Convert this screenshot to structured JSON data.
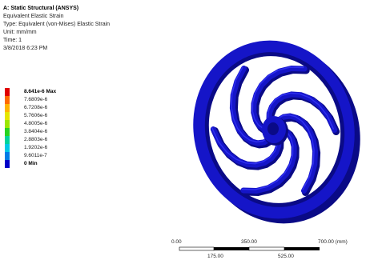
{
  "info": {
    "title": "A: Static Structural (ANSYS)",
    "result": "Equivalent Elastic Strain",
    "type": "Type: Equivalent (von-Mises) Elastic Strain",
    "unit": "Unit: mm/mm",
    "time": "Time: 1",
    "date": "3/8/2018 6:23 PM"
  },
  "legend": [
    {
      "label": "8.641e-6 Max",
      "color": "#e00000",
      "emphasis": true
    },
    {
      "label": "7.6809e-6",
      "color": "#ff6a00",
      "emphasis": false
    },
    {
      "label": "6.7208e-6",
      "color": "#ffb400",
      "emphasis": false
    },
    {
      "label": "5.7606e-6",
      "color": "#e6e600",
      "emphasis": false
    },
    {
      "label": "4.8005e-6",
      "color": "#9be600",
      "emphasis": false
    },
    {
      "label": "3.8404e-6",
      "color": "#27d31f",
      "emphasis": false
    },
    {
      "label": "2.8803e-6",
      "color": "#00d39b",
      "emphasis": false
    },
    {
      "label": "1.9202e-6",
      "color": "#00c8e6",
      "emphasis": false
    },
    {
      "label": "9.6011e-7",
      "color": "#007ce6",
      "emphasis": false
    },
    {
      "label": "0 Min",
      "color": "#0000c8",
      "emphasis": true
    }
  ],
  "model": {
    "color": "#1515c8",
    "shade": "#0a0a86",
    "highlight": "#2e2ef0"
  },
  "scale": {
    "top_labels": [
      "0.00",
      "350.00",
      "700.00 (mm)"
    ],
    "bottom_labels": [
      "175.00",
      "525.00"
    ]
  }
}
